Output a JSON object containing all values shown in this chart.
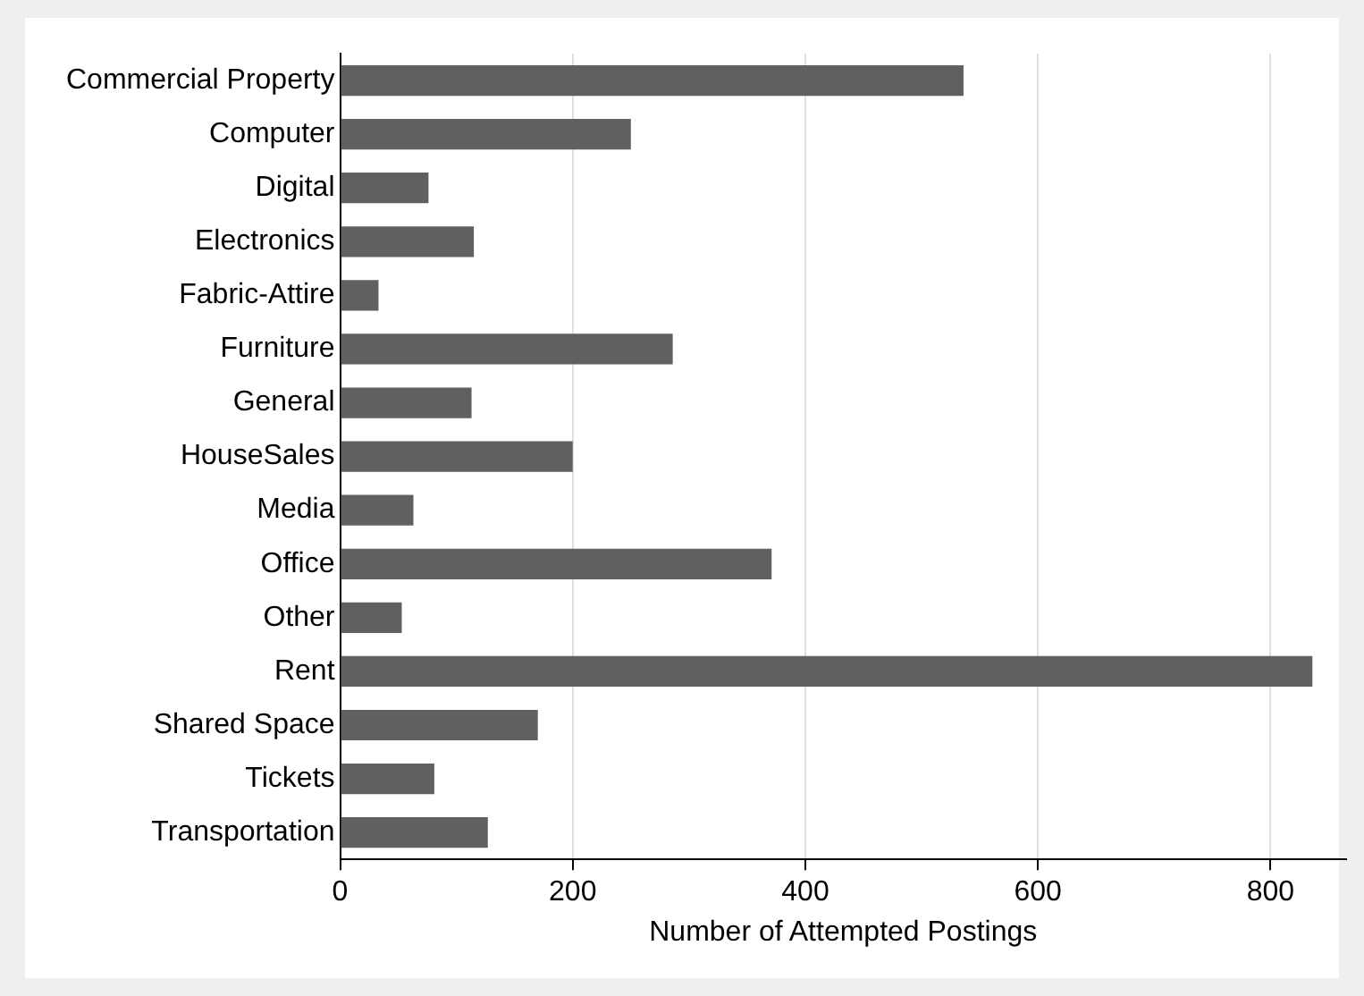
{
  "chart_data": {
    "type": "bar",
    "orientation": "horizontal",
    "xlabel": "Number of Attempted Postings",
    "categories": [
      "Commercial Property",
      "Computer",
      "Digital",
      "Electronics",
      "Fabric-Attire",
      "Furniture",
      "General",
      "HouseSales",
      "Media",
      "Office",
      "Other",
      "Rent",
      "Shared Space",
      "Tickets",
      "Transportation"
    ],
    "values": [
      536,
      250,
      76,
      115,
      33,
      286,
      113,
      200,
      63,
      371,
      53,
      836,
      170,
      81,
      127
    ],
    "color": "#606060",
    "xlim": [
      0,
      865
    ],
    "xticks": [
      0,
      200,
      400,
      600,
      800
    ],
    "grid": "x"
  }
}
